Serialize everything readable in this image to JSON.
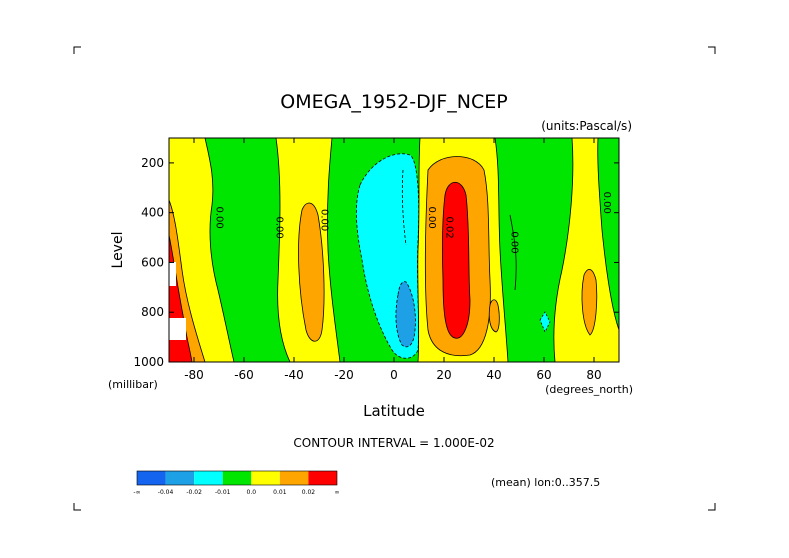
{
  "chart_data": {
    "type": "contour",
    "title": "OMEGA_1952-DJF_NCEP",
    "units_label": "(units:Pascal/s)",
    "xlabel": "Latitude",
    "ylabel": "Level",
    "x_unit_label": "(degrees_north)",
    "y_unit_label": "(millibar)",
    "xlim": [
      -90,
      90
    ],
    "ylim": [
      1000,
      100
    ],
    "x_ticks": [
      -80,
      -60,
      -40,
      -20,
      0,
      20,
      40,
      60,
      80
    ],
    "x_tick_labels": [
      "-80",
      "-60",
      "-40",
      "-20",
      "0",
      "20",
      "40",
      "60",
      "80"
    ],
    "y_ticks": [
      200,
      400,
      600,
      800,
      1000
    ],
    "y_tick_labels": [
      "200",
      "400",
      "600",
      "800",
      "1000"
    ],
    "contour_interval_text": "CONTOUR INTERVAL = 1.000E-02",
    "footer_text": "(mean) lon:0..357.5",
    "contour_labels": [
      {
        "text": "0.00",
        "lat": -71,
        "lev": 420
      },
      {
        "text": "0.00",
        "lat": -47,
        "lev": 460
      },
      {
        "text": "0.00",
        "lat": -29,
        "lev": 430
      },
      {
        "text": "0.00",
        "lat": 14,
        "lev": 420
      },
      {
        "text": "0.02",
        "lat": 21,
        "lev": 460
      },
      {
        "text": "0.00",
        "lat": 47,
        "lev": 520
      },
      {
        "text": "0.00",
        "lat": 84,
        "lev": 360
      }
    ],
    "colorbar": {
      "colors": [
        "#1464f0",
        "#1ea0e6",
        "#00ffff",
        "#00e600",
        "#ffff00",
        "#ffa500",
        "#ff0000"
      ],
      "labels": [
        "-∞",
        "-0.04",
        "-0.02",
        "-0.01",
        "0.0",
        "0.01",
        "0.02",
        "∞"
      ]
    }
  }
}
